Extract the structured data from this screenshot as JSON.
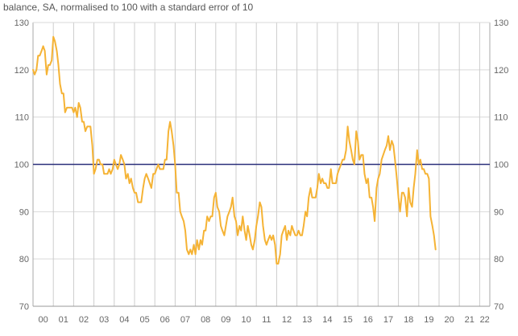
{
  "chart_data": {
    "type": "line",
    "title": "",
    "subtitle": "balance, SA, normalised to 100 with a standard error of 10",
    "xlabel": "",
    "ylabel": "",
    "ylim": [
      70,
      130
    ],
    "yticks": [
      70,
      80,
      90,
      100,
      110,
      120,
      130
    ],
    "xlim": [
      2000,
      2022.5
    ],
    "year_labels": [
      "00",
      "01",
      "02",
      "03",
      "04",
      "05",
      "06",
      "07",
      "08",
      "09",
      "10",
      "11",
      "12",
      "13",
      "14",
      "15",
      "16",
      "17",
      "18",
      "19",
      "20",
      "21",
      "22"
    ],
    "grid": true,
    "reference_line": {
      "value": 100,
      "color": "#2b2f7a"
    },
    "series": [
      {
        "name": "balance",
        "color": "#f5b335",
        "points": [
          [
            2000.0,
            120
          ],
          [
            2000.08,
            119
          ],
          [
            2000.17,
            120
          ],
          [
            2000.25,
            123
          ],
          [
            2000.33,
            123
          ],
          [
            2000.42,
            124
          ],
          [
            2000.5,
            125
          ],
          [
            2000.58,
            124
          ],
          [
            2000.67,
            119
          ],
          [
            2000.75,
            121
          ],
          [
            2000.83,
            121
          ],
          [
            2000.92,
            122
          ],
          [
            2001.0,
            127
          ],
          [
            2001.08,
            126
          ],
          [
            2001.17,
            124
          ],
          [
            2001.25,
            121
          ],
          [
            2001.33,
            117
          ],
          [
            2001.42,
            115
          ],
          [
            2001.5,
            115
          ],
          [
            2001.58,
            111
          ],
          [
            2001.67,
            112
          ],
          [
            2001.75,
            112
          ],
          [
            2001.83,
            112
          ],
          [
            2001.92,
            112
          ],
          [
            2002.0,
            111
          ],
          [
            2002.08,
            112
          ],
          [
            2002.17,
            110
          ],
          [
            2002.25,
            113
          ],
          [
            2002.33,
            112
          ],
          [
            2002.42,
            109
          ],
          [
            2002.5,
            109
          ],
          [
            2002.58,
            107
          ],
          [
            2002.67,
            108
          ],
          [
            2002.75,
            108
          ],
          [
            2002.83,
            108
          ],
          [
            2002.92,
            104
          ],
          [
            2003.0,
            98
          ],
          [
            2003.08,
            99
          ],
          [
            2003.17,
            101
          ],
          [
            2003.25,
            101
          ],
          [
            2003.33,
            100
          ],
          [
            2003.42,
            100
          ],
          [
            2003.5,
            98
          ],
          [
            2003.58,
            98
          ],
          [
            2003.67,
            98
          ],
          [
            2003.75,
            99
          ],
          [
            2003.83,
            98
          ],
          [
            2003.92,
            99
          ],
          [
            2004.0,
            101
          ],
          [
            2004.08,
            100
          ],
          [
            2004.17,
            99
          ],
          [
            2004.25,
            100
          ],
          [
            2004.33,
            102
          ],
          [
            2004.42,
            101
          ],
          [
            2004.5,
            100
          ],
          [
            2004.58,
            97
          ],
          [
            2004.67,
            98
          ],
          [
            2004.75,
            96
          ],
          [
            2004.83,
            97
          ],
          [
            2004.92,
            95
          ],
          [
            2005.0,
            94
          ],
          [
            2005.08,
            94
          ],
          [
            2005.17,
            92
          ],
          [
            2005.25,
            92
          ],
          [
            2005.33,
            92
          ],
          [
            2005.42,
            95
          ],
          [
            2005.5,
            97
          ],
          [
            2005.58,
            98
          ],
          [
            2005.67,
            97
          ],
          [
            2005.75,
            96
          ],
          [
            2005.83,
            95
          ],
          [
            2005.92,
            98
          ],
          [
            2006.0,
            98
          ],
          [
            2006.08,
            99
          ],
          [
            2006.17,
            100
          ],
          [
            2006.25,
            99
          ],
          [
            2006.33,
            99
          ],
          [
            2006.42,
            99
          ],
          [
            2006.5,
            101
          ],
          [
            2006.58,
            101
          ],
          [
            2006.67,
            107
          ],
          [
            2006.75,
            109
          ],
          [
            2006.83,
            107
          ],
          [
            2006.92,
            104
          ],
          [
            2007.0,
            100
          ],
          [
            2007.08,
            94
          ],
          [
            2007.17,
            94
          ],
          [
            2007.25,
            90
          ],
          [
            2007.33,
            89
          ],
          [
            2007.42,
            88
          ],
          [
            2007.5,
            86
          ],
          [
            2007.58,
            82
          ],
          [
            2007.67,
            81
          ],
          [
            2007.75,
            82
          ],
          [
            2007.83,
            81
          ],
          [
            2007.92,
            83
          ],
          [
            2008.0,
            81
          ],
          [
            2008.08,
            84
          ],
          [
            2008.17,
            82
          ],
          [
            2008.25,
            84
          ],
          [
            2008.33,
            83
          ],
          [
            2008.42,
            86
          ],
          [
            2008.5,
            86
          ],
          [
            2008.58,
            89
          ],
          [
            2008.67,
            88
          ],
          [
            2008.75,
            89
          ],
          [
            2008.83,
            89
          ],
          [
            2008.92,
            93
          ],
          [
            2009.0,
            94
          ],
          [
            2009.08,
            91
          ],
          [
            2009.17,
            90
          ],
          [
            2009.25,
            87
          ],
          [
            2009.33,
            86
          ],
          [
            2009.42,
            85
          ],
          [
            2009.5,
            87
          ],
          [
            2009.58,
            89
          ],
          [
            2009.67,
            90
          ],
          [
            2009.75,
            91
          ],
          [
            2009.83,
            93
          ],
          [
            2009.92,
            89
          ],
          [
            2010.0,
            88
          ],
          [
            2010.08,
            85
          ],
          [
            2010.17,
            87
          ],
          [
            2010.25,
            86
          ],
          [
            2010.33,
            89
          ],
          [
            2010.42,
            86
          ],
          [
            2010.5,
            84
          ],
          [
            2010.58,
            87
          ],
          [
            2010.67,
            85
          ],
          [
            2010.75,
            83
          ],
          [
            2010.83,
            82
          ],
          [
            2010.92,
            84
          ],
          [
            2011.0,
            87
          ],
          [
            2011.08,
            89
          ],
          [
            2011.17,
            92
          ],
          [
            2011.25,
            91
          ],
          [
            2011.33,
            87
          ],
          [
            2011.42,
            84
          ],
          [
            2011.5,
            83
          ],
          [
            2011.58,
            84
          ],
          [
            2011.67,
            85
          ],
          [
            2011.75,
            84
          ],
          [
            2011.83,
            85
          ],
          [
            2011.92,
            83
          ],
          [
            2012.0,
            79
          ],
          [
            2012.08,
            79
          ],
          [
            2012.17,
            81
          ],
          [
            2012.25,
            85
          ],
          [
            2012.33,
            86
          ],
          [
            2012.42,
            87
          ],
          [
            2012.5,
            84
          ],
          [
            2012.58,
            86
          ],
          [
            2012.67,
            85
          ],
          [
            2012.75,
            87
          ],
          [
            2012.83,
            86
          ],
          [
            2012.92,
            85
          ],
          [
            2013.0,
            85
          ],
          [
            2013.08,
            86
          ],
          [
            2013.17,
            85
          ],
          [
            2013.25,
            85
          ],
          [
            2013.33,
            87
          ],
          [
            2013.42,
            90
          ],
          [
            2013.5,
            89
          ],
          [
            2013.58,
            93
          ],
          [
            2013.67,
            95
          ],
          [
            2013.75,
            93
          ],
          [
            2013.83,
            93
          ],
          [
            2013.92,
            93
          ],
          [
            2014.0,
            95
          ],
          [
            2014.08,
            98
          ],
          [
            2014.17,
            96
          ],
          [
            2014.25,
            97
          ],
          [
            2014.33,
            96
          ],
          [
            2014.42,
            96
          ],
          [
            2014.5,
            95
          ],
          [
            2014.58,
            95
          ],
          [
            2014.67,
            99
          ],
          [
            2014.75,
            96
          ],
          [
            2014.83,
            96
          ],
          [
            2014.92,
            96
          ],
          [
            2015.0,
            98
          ],
          [
            2015.08,
            99
          ],
          [
            2015.17,
            100
          ],
          [
            2015.25,
            101
          ],
          [
            2015.33,
            101
          ],
          [
            2015.42,
            103
          ],
          [
            2015.5,
            108
          ],
          [
            2015.58,
            105
          ],
          [
            2015.67,
            103
          ],
          [
            2015.75,
            101
          ],
          [
            2015.83,
            100
          ],
          [
            2015.92,
            107
          ],
          [
            2016.0,
            105
          ],
          [
            2016.08,
            101
          ],
          [
            2016.17,
            102
          ],
          [
            2016.25,
            102
          ],
          [
            2016.33,
            98
          ],
          [
            2016.42,
            96
          ],
          [
            2016.5,
            97
          ],
          [
            2016.58,
            93
          ],
          [
            2016.67,
            93
          ],
          [
            2016.75,
            91
          ],
          [
            2016.83,
            88
          ],
          [
            2016.92,
            95
          ],
          [
            2017.0,
            97
          ],
          [
            2017.08,
            98
          ],
          [
            2017.17,
            101
          ],
          [
            2017.25,
            102
          ],
          [
            2017.33,
            103
          ],
          [
            2017.42,
            104
          ],
          [
            2017.5,
            106
          ],
          [
            2017.58,
            103
          ],
          [
            2017.67,
            105
          ],
          [
            2017.75,
            104
          ],
          [
            2017.83,
            101
          ],
          [
            2017.92,
            97
          ],
          [
            2018.0,
            93
          ],
          [
            2018.08,
            90
          ],
          [
            2018.17,
            94
          ],
          [
            2018.25,
            94
          ],
          [
            2018.33,
            93
          ],
          [
            2018.42,
            89
          ],
          [
            2018.5,
            95
          ],
          [
            2018.58,
            92
          ],
          [
            2018.67,
            91
          ],
          [
            2018.75,
            95
          ],
          [
            2018.83,
            98
          ],
          [
            2018.92,
            103
          ],
          [
            2019.0,
            100
          ],
          [
            2019.08,
            101
          ],
          [
            2019.17,
            99
          ],
          [
            2019.25,
            99
          ],
          [
            2019.33,
            98
          ],
          [
            2019.42,
            98
          ],
          [
            2019.5,
            97
          ],
          [
            2019.58,
            89
          ],
          [
            2019.67,
            87
          ],
          [
            2019.75,
            85
          ],
          [
            2019.83,
            82
          ]
        ]
      }
    ]
  }
}
